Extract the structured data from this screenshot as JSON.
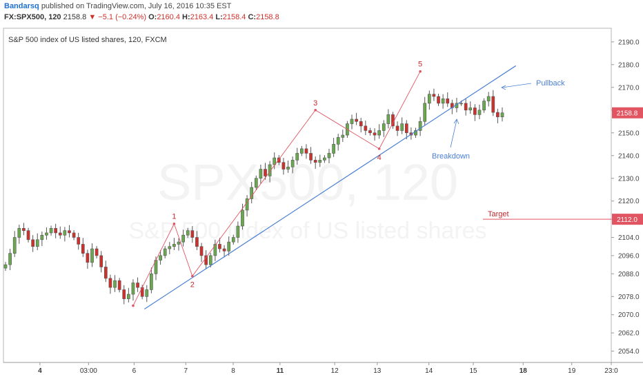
{
  "header": {
    "author": "Bandarsq",
    "published_text": "published on TradingView.com, July 16, 2016 10:35 EST",
    "symbol": "FX:SPX500, 120",
    "last": "2158.8",
    "change": "−5.1 (−0.24%)",
    "o_label": "O:",
    "o_value": "2160.4",
    "h_label": "H:",
    "h_value": "2163.4",
    "l_label": "L:",
    "l_value": "2158.4",
    "c_label": "C:",
    "c_value": "2158.8"
  },
  "legend": "S&P 500 index of US listed shares, 120, FXCM",
  "watermark": {
    "symbol": "SPX500, 120",
    "description": "S&P 500 index of US listed shares"
  },
  "colors": {
    "up": "#6aa84f",
    "down": "#d0302b",
    "trendline": "#4a7fd4",
    "wave": "#e05561",
    "target": "#e05561",
    "annotation": "#4a7fd4",
    "price_badge": "#e05561"
  },
  "chart_data": {
    "type": "candlestick",
    "title": "S&P 500 index of US listed shares, 120, FXCM",
    "ylim": [
      2049,
      2196
    ],
    "y_ticks": [
      2054,
      2062,
      2070,
      2078,
      2088,
      2096,
      2104,
      2112,
      2120,
      2130,
      2140,
      2150,
      2160,
      2170,
      2180,
      2190
    ],
    "y_tick_labels": [
      "2054.0",
      "2062.0",
      "2070.0",
      "2078.0",
      "2088.0",
      "2096.0",
      "2104.0",
      "",
      "2120.0",
      "2130.0",
      "2140.0",
      "2150.0",
      "",
      "2170.0",
      "2180.0",
      "2190.0"
    ],
    "x_ticks": [
      {
        "label": "4",
        "bold": true,
        "t": 0.06
      },
      {
        "label": "03:00",
        "bold": false,
        "t": 0.14
      },
      {
        "label": "6",
        "bold": false,
        "t": 0.215
      },
      {
        "label": "7",
        "bold": false,
        "t": 0.3
      },
      {
        "label": "8",
        "bold": false,
        "t": 0.378
      },
      {
        "label": "11",
        "bold": true,
        "t": 0.455
      },
      {
        "label": "12",
        "bold": false,
        "t": 0.545
      },
      {
        "label": "13",
        "bold": false,
        "t": 0.615
      },
      {
        "label": "14",
        "bold": false,
        "t": 0.7
      },
      {
        "label": "15",
        "bold": false,
        "t": 0.773
      },
      {
        "label": "18",
        "bold": true,
        "t": 0.855
      },
      {
        "label": "19",
        "bold": false,
        "t": 0.935
      },
      {
        "label": "23:0",
        "bold": false,
        "t": 1.0
      }
    ],
    "x_range": [
      0,
      1
    ],
    "price_labels": [
      {
        "text": "2158.8",
        "value": 2158.8
      },
      {
        "text": "2112.0",
        "value": 2112.0
      }
    ],
    "closes": [
      2092,
      2097,
      2104,
      2108,
      2107,
      2103,
      2100,
      2103,
      2105,
      2106,
      2108,
      2106,
      2105,
      2107,
      2106,
      2104,
      2101,
      2097,
      2093,
      2099,
      2096,
      2091,
      2086,
      2082,
      2085,
      2081,
      2077,
      2079,
      2084,
      2082,
      2078,
      2081,
      2088,
      2094,
      2096,
      2099,
      2100,
      2101,
      2102,
      2105,
      2107,
      2104,
      2100,
      2096,
      2092,
      2096,
      2101,
      2099,
      2098,
      2102,
      2104,
      2109,
      2116,
      2121,
      2126,
      2130,
      2134,
      2131,
      2136,
      2139,
      2137,
      2134,
      2135,
      2138,
      2141,
      2143,
      2141,
      2138,
      2137,
      2138,
      2139,
      2141,
      2145,
      2148,
      2149,
      2154,
      2156,
      2155,
      2153,
      2151,
      2150,
      2149,
      2151,
      2154,
      2158,
      2153,
      2151,
      2154,
      2150,
      2149,
      2151,
      2155,
      2163,
      2167,
      2166,
      2163,
      2165,
      2163,
      2161,
      2163,
      2163,
      2160,
      2161,
      2158,
      2160,
      2164,
      2166,
      2159,
      2157,
      2158.8
    ],
    "wave_points": [
      {
        "label": "",
        "i": 28,
        "value": 2074
      },
      {
        "label": "1",
        "i": 37,
        "value": 2110
      },
      {
        "label": "2",
        "i": 41,
        "value": 2087
      },
      {
        "label": "3",
        "i": 68,
        "value": 2160
      },
      {
        "label": "4",
        "i": 82,
        "value": 2143
      },
      {
        "label": "5",
        "i": 91,
        "value": 2177
      }
    ],
    "trendline": {
      "start": {
        "t": 0.232,
        "value": 2072.5
      },
      "end": {
        "t": 0.843,
        "value": 2179.5
      }
    },
    "target": {
      "label": "Target",
      "value": 2112.0
    },
    "annotations": [
      {
        "text": "Pullback"
      },
      {
        "text": "Breakdown"
      }
    ]
  }
}
